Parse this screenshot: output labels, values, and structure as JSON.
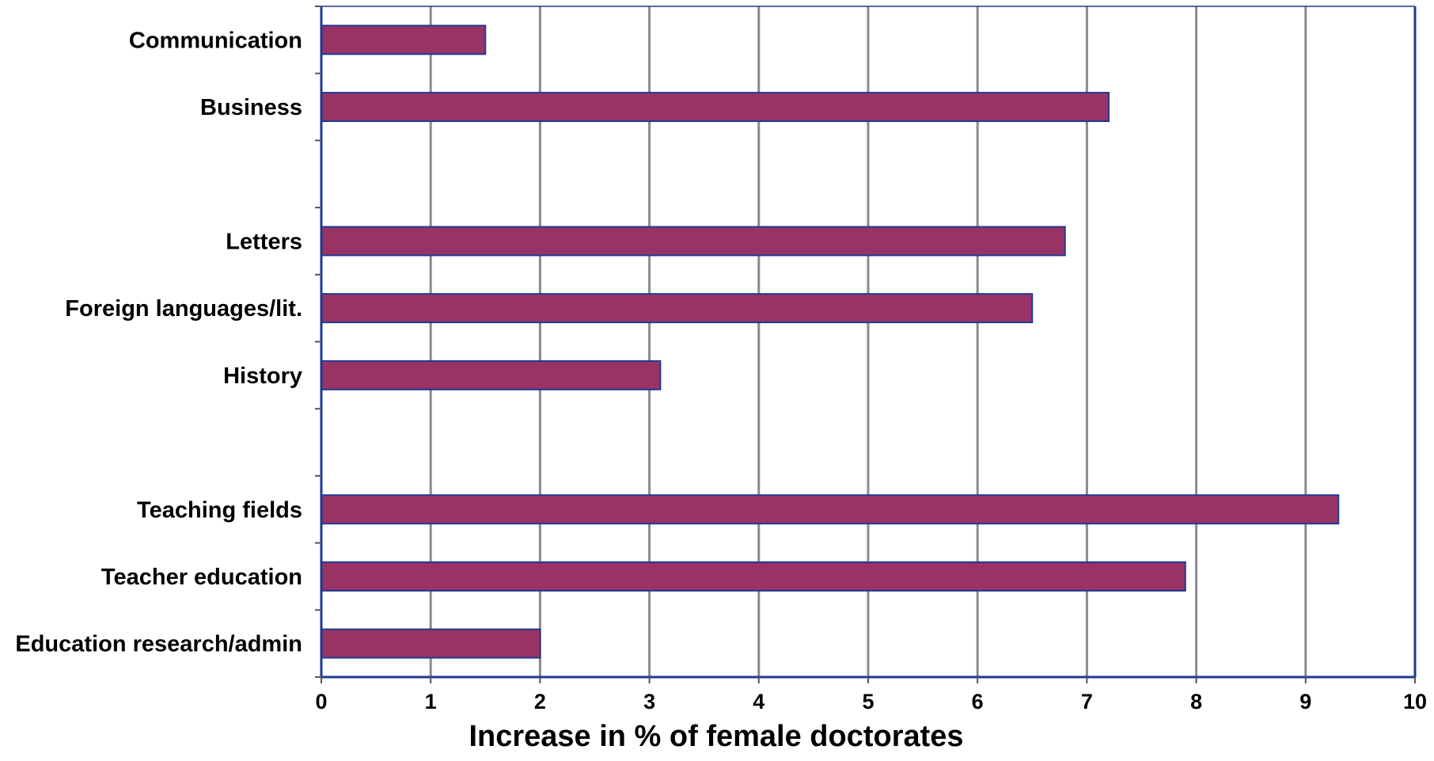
{
  "chart_data": {
    "type": "bar",
    "orientation": "horizontal",
    "title": "",
    "xlabel": "Increase in % of female doctorates",
    "ylabel": "",
    "xlim": [
      0,
      10
    ],
    "x_ticks": [
      "0",
      "1",
      "2",
      "3",
      "4",
      "5",
      "6",
      "7",
      "8",
      "9",
      "10"
    ],
    "grid": "vertical",
    "legend": "none",
    "categories": [
      "Communication",
      "Business",
      "",
      "Letters",
      "Foreign languages/lit.",
      "History",
      "",
      "Teaching fields",
      "Teacher education",
      "Education research/admin"
    ],
    "values": [
      1.5,
      7.2,
      null,
      6.8,
      6.5,
      3.1,
      null,
      9.3,
      7.9,
      2.0
    ],
    "colors": {
      "bar_fill": "#993366",
      "bar_stroke": "#1f3a93",
      "axis": "#1f3a8f",
      "grid": "#8a8a8a"
    }
  }
}
